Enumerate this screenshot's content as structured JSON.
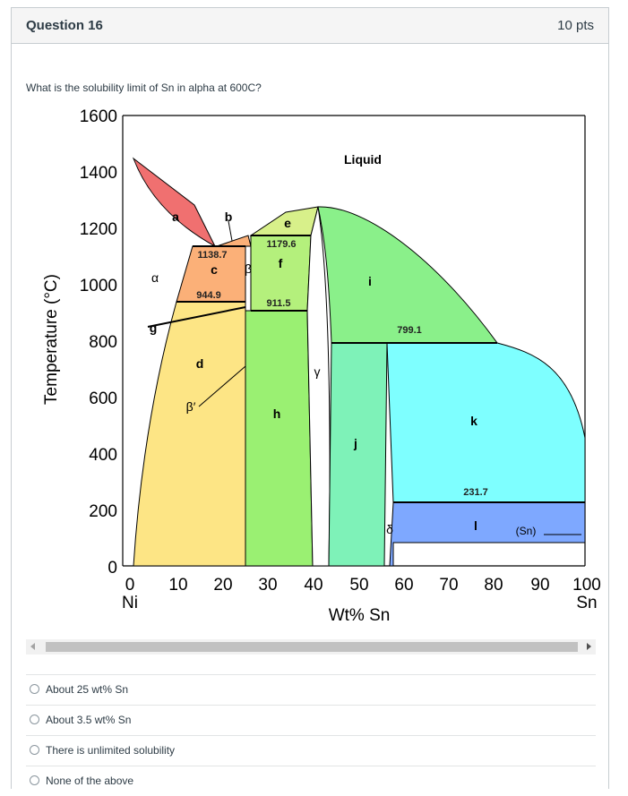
{
  "question": {
    "title": "Question 16",
    "points": "10 pts",
    "text": "What is the solubility limit of Sn in alpha at 600C?"
  },
  "diagram": {
    "y_ticks": [
      "1600",
      "1400",
      "1200",
      "1000",
      "800",
      "600",
      "400",
      "200",
      "0"
    ],
    "x_ticks": [
      "0",
      "10",
      "20",
      "30",
      "40",
      "50",
      "60",
      "70",
      "80",
      "90",
      "100"
    ],
    "x_left_element": "Ni",
    "x_right_element": "Sn",
    "xlabel": "Wt% Sn",
    "ylabel": "Temperature (°C)",
    "region_labels": {
      "liquid": "Liquid",
      "a": "a",
      "b": "b",
      "c": "c",
      "d": "d",
      "e": "e",
      "f": "f",
      "g": "g",
      "h": "h",
      "i": "i",
      "j": "j",
      "k": "k",
      "l": "l",
      "alpha": "α",
      "beta": "β",
      "beta_prime": "β′",
      "gamma": "γ",
      "delta": "δ",
      "sn": "(Sn)"
    },
    "temperature_labels": {
      "t1138": "1138.7",
      "t944": "944.9",
      "t1179": "1179.6",
      "t911": "911.5",
      "t799": "799.1",
      "t231": "231.7"
    },
    "colors": {
      "a": "#f07070",
      "c": "#fbb078",
      "e": "#d8f08a",
      "f": "#b4f07c",
      "h": "#9af072",
      "i": "#8af08a",
      "j": "#7ef2b8",
      "k": "#7effff",
      "l": "#7ea8ff",
      "d": "#fde585",
      "gamma": "#ffffff"
    }
  },
  "scrollbar": {
    "left_arrow": "left-arrow",
    "right_arrow": "right-arrow"
  },
  "answers": [
    "About 25 wt% Sn",
    "About 3.5 wt% Sn",
    "There is unlimited solubility",
    "None of the above"
  ]
}
